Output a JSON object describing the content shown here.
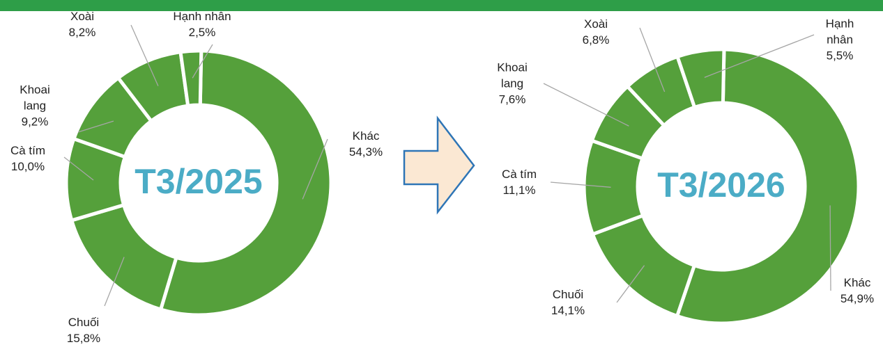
{
  "chart_data": [
    {
      "type": "donut",
      "title": "T3/2025",
      "color": "#55a03b",
      "categories": [
        "Khác",
        "Chuối",
        "Cà tím",
        "Khoai lang",
        "Xoài",
        "Hạnh nhân"
      ],
      "values": [
        54.3,
        15.8,
        10.0,
        9.2,
        8.2,
        2.5
      ],
      "value_labels": [
        "54,3%",
        "15,8%",
        "10,0%",
        "9,2%",
        "8,2%",
        "2,5%"
      ]
    },
    {
      "type": "donut",
      "title": "T3/2026",
      "color": "#55a03b",
      "categories": [
        "Khác",
        "Chuối",
        "Cà tím",
        "Khoai lang",
        "Xoài",
        "Hạnh nhân"
      ],
      "values": [
        54.9,
        14.1,
        11.1,
        7.6,
        6.8,
        5.5
      ],
      "value_labels": [
        "54,9%",
        "14,1%",
        "11,1%",
        "7,6%",
        "6,8%",
        "5,5%"
      ]
    }
  ]
}
